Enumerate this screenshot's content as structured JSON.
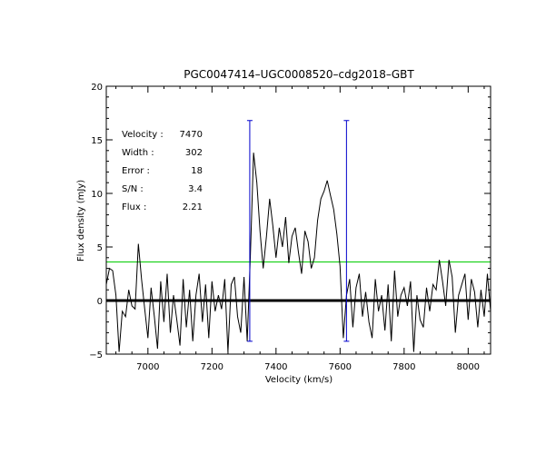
{
  "chart_data": {
    "type": "line",
    "title": "PGC0047414–UGC0008520–cdg2018–GBT",
    "xlabel": "Velocity (km/s)",
    "ylabel": "Flux density (mJy)",
    "xlim": [
      6870,
      8070
    ],
    "ylim": [
      -5,
      20
    ],
    "x_ticks": [
      7000,
      7200,
      7400,
      7600,
      7800,
      8000
    ],
    "y_ticks": [
      -5,
      0,
      5,
      10,
      15,
      20
    ],
    "x_tick_labels": [
      "7000",
      "7200",
      "7400",
      "7600",
      "7800",
      "8000"
    ],
    "y_tick_labels": [
      "−5",
      "0",
      "5",
      "10",
      "15",
      "20"
    ],
    "info": [
      {
        "label": "Velocity :",
        "value": "7470"
      },
      {
        "label": "Width :",
        "value": "302"
      },
      {
        "label": "Error :",
        "value": "18"
      },
      {
        "label": "S/N :",
        "value": "3.4"
      },
      {
        "label": "Flux :",
        "value": "2.21"
      }
    ],
    "info_color": "#0000cc",
    "markers": {
      "color": "#0000cc",
      "x": [
        7318,
        7620
      ],
      "y_range": [
        -3.8,
        16.8
      ]
    },
    "zero_line": {
      "y": 0,
      "color": "#000000"
    },
    "threshold_line": {
      "y": 3.6,
      "color": "#00cc00"
    },
    "series": [
      {
        "name": "spectrum",
        "color": "#000000",
        "x": [
          6870,
          6880,
          6890,
          6900,
          6910,
          6920,
          6930,
          6940,
          6950,
          6960,
          6970,
          6980,
          6990,
          7000,
          7010,
          7020,
          7030,
          7040,
          7050,
          7060,
          7070,
          7080,
          7090,
          7100,
          7110,
          7120,
          7130,
          7140,
          7150,
          7160,
          7170,
          7180,
          7190,
          7200,
          7210,
          7220,
          7230,
          7240,
          7250,
          7260,
          7270,
          7280,
          7290,
          7300,
          7310,
          7320,
          7330,
          7340,
          7350,
          7360,
          7370,
          7380,
          7390,
          7400,
          7410,
          7420,
          7430,
          7440,
          7450,
          7460,
          7470,
          7480,
          7490,
          7500,
          7510,
          7520,
          7530,
          7540,
          7550,
          7560,
          7570,
          7580,
          7590,
          7600,
          7610,
          7620,
          7630,
          7640,
          7650,
          7660,
          7670,
          7680,
          7690,
          7700,
          7710,
          7720,
          7730,
          7740,
          7750,
          7760,
          7770,
          7780,
          7790,
          7800,
          7810,
          7820,
          7830,
          7840,
          7850,
          7860,
          7870,
          7880,
          7890,
          7900,
          7910,
          7920,
          7930,
          7940,
          7950,
          7960,
          7970,
          7980,
          7990,
          8000,
          8010,
          8020,
          8030,
          8040,
          8050,
          8060,
          8070
        ],
        "y": [
          1.5,
          3.0,
          2.8,
          0.5,
          -4.8,
          -1.0,
          -1.5,
          1.0,
          -0.5,
          -0.8,
          5.3,
          2.0,
          -0.8,
          -3.5,
          1.2,
          -1.5,
          -4.5,
          1.8,
          -2.0,
          2.5,
          -3.0,
          0.5,
          -1.8,
          -4.2,
          2.0,
          -2.5,
          1.0,
          -3.8,
          0.5,
          2.5,
          -2.0,
          1.5,
          -3.5,
          1.8,
          -1.0,
          0.5,
          -0.8,
          2.0,
          -4.8,
          1.5,
          2.2,
          -1.5,
          -3.0,
          2.2,
          -3.8,
          4.2,
          13.8,
          11.0,
          6.5,
          3.0,
          6.0,
          9.5,
          7.0,
          4.0,
          6.8,
          5.0,
          7.8,
          3.5,
          6.0,
          6.8,
          4.5,
          2.5,
          6.5,
          5.5,
          3.0,
          4.0,
          7.5,
          9.5,
          10.2,
          11.2,
          9.8,
          8.5,
          6.2,
          3.2,
          -3.5,
          0.5,
          2.0,
          -2.5,
          1.2,
          2.5,
          -1.5,
          0.8,
          -2.0,
          -3.5,
          2.0,
          -1.0,
          0.5,
          -2.8,
          1.5,
          -3.8,
          2.8,
          -1.5,
          0.5,
          1.2,
          -0.5,
          1.8,
          -4.8,
          0.5,
          -1.8,
          -2.5,
          1.2,
          -1.0,
          1.5,
          1.0,
          3.8,
          1.8,
          -0.5,
          3.8,
          2.2,
          -3.0,
          0.5,
          1.5,
          2.5,
          -1.8,
          2.0,
          0.8,
          -2.5,
          1.0,
          -1.5,
          2.5,
          -1.0
        ]
      }
    ]
  }
}
